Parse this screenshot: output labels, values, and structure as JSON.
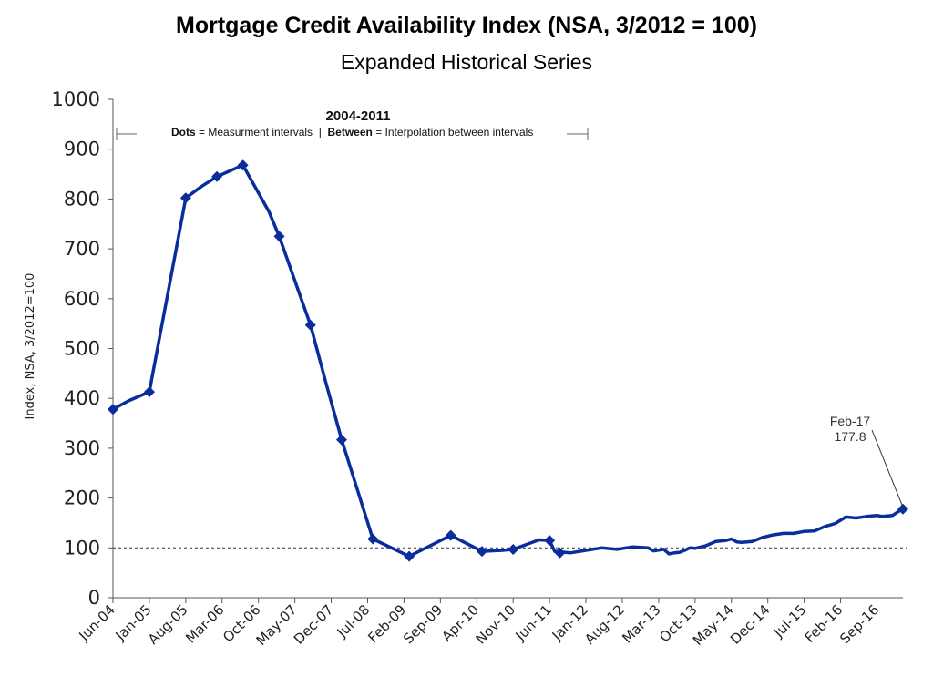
{
  "title": "Mortgage Credit Availability Index (NSA, 3/2012 = 100)",
  "subtitle": "Expanded Historical Series",
  "colors": {
    "series": "#0a2d9c",
    "axis": "#444444",
    "reference": "#333333"
  },
  "note": {
    "title": "2004-2011",
    "dots_bold": "Dots",
    "dots_text": " = Measurment intervals  |  ",
    "between_bold": "Between",
    "between_text": " = Interpolation between intervals"
  },
  "annotation": {
    "label": "Feb-17",
    "value": "177.8"
  },
  "chart_data": {
    "type": "line",
    "title": "Mortgage Credit Availability Index (NSA, 3/2012 = 100)",
    "subtitle": "Expanded Historical Series",
    "xlabel": "",
    "ylabel": "Index, NSA, 3/2012=100",
    "ylim": [
      0,
      1000
    ],
    "yticks": [
      0,
      100,
      200,
      300,
      400,
      500,
      600,
      700,
      800,
      900,
      1000
    ],
    "xlim": [
      "2004-06",
      "2017-02"
    ],
    "xticks": [
      "Jun-04",
      "Jan-05",
      "Aug-05",
      "Mar-06",
      "Oct-06",
      "May-07",
      "Dec-07",
      "Jul-08",
      "Feb-09",
      "Sep-09",
      "Apr-10",
      "Nov-10",
      "Jun-11",
      "Jan-12",
      "Aug-12",
      "Mar-13",
      "Oct-13",
      "May-14",
      "Dec-14",
      "Jul-15",
      "Feb-16",
      "Sep-16"
    ],
    "reference_line": 100,
    "grid": false,
    "series": [
      {
        "points": [
          [
            "2004-06",
            378
          ],
          [
            "2004-09",
            395
          ],
          [
            "2005-01",
            413
          ],
          [
            "2005-08",
            802
          ],
          [
            "2005-11",
            825
          ],
          [
            "2006-02",
            845
          ],
          [
            "2006-07",
            868
          ],
          [
            "2006-12",
            775
          ],
          [
            "2007-02",
            725
          ],
          [
            "2007-08",
            547
          ],
          [
            "2007-11",
            430
          ],
          [
            "2008-02",
            317
          ],
          [
            "2008-08",
            118
          ],
          [
            "2009-03",
            83
          ],
          [
            "2009-11",
            125
          ],
          [
            "2010-05",
            93
          ],
          [
            "2010-09",
            95
          ],
          [
            "2010-11",
            97
          ],
          [
            "2011-04",
            116
          ],
          [
            "2011-06",
            115
          ],
          [
            "2011-07",
            93
          ],
          [
            "2011-10",
            90
          ],
          [
            "2012-01",
            95
          ],
          [
            "2012-04",
            100
          ],
          [
            "2012-07",
            97
          ],
          [
            "2012-10",
            102
          ],
          [
            "2013-01",
            100
          ],
          [
            "2013-02",
            94
          ],
          [
            "2013-04",
            97
          ],
          [
            "2013-05",
            88
          ],
          [
            "2013-06",
            90
          ],
          [
            "2013-07",
            91
          ],
          [
            "2013-08",
            95
          ],
          [
            "2013-09",
            100
          ],
          [
            "2013-10",
            99
          ],
          [
            "2013-12",
            104
          ],
          [
            "2014-02",
            113
          ],
          [
            "2014-04",
            115
          ],
          [
            "2014-05",
            118
          ],
          [
            "2014-06",
            112
          ],
          [
            "2014-07",
            111
          ],
          [
            "2014-09",
            113
          ],
          [
            "2014-11",
            121
          ],
          [
            "2015-01",
            126
          ],
          [
            "2015-03",
            129
          ],
          [
            "2015-05",
            129
          ],
          [
            "2015-07",
            133
          ],
          [
            "2015-09",
            134
          ],
          [
            "2015-11",
            143
          ],
          [
            "2016-01",
            149
          ],
          [
            "2016-03",
            162
          ],
          [
            "2016-05",
            160
          ],
          [
            "2016-07",
            163
          ],
          [
            "2016-09",
            165
          ],
          [
            "2016-10",
            163
          ],
          [
            "2016-12",
            165
          ],
          [
            "2017-01",
            172
          ],
          [
            "2017-02",
            177.8
          ]
        ],
        "markers": [
          [
            "2004-06",
            378
          ],
          [
            "2005-01",
            413
          ],
          [
            "2005-08",
            802
          ],
          [
            "2006-02",
            845
          ],
          [
            "2006-07",
            868
          ],
          [
            "2007-02",
            725
          ],
          [
            "2007-08",
            547
          ],
          [
            "2008-02",
            317
          ],
          [
            "2008-08",
            118
          ],
          [
            "2009-03",
            83
          ],
          [
            "2009-11",
            125
          ],
          [
            "2010-05",
            93
          ],
          [
            "2010-11",
            97
          ],
          [
            "2011-06",
            115
          ],
          [
            "2011-08",
            90
          ],
          [
            "2017-02",
            177.8
          ]
        ]
      }
    ]
  }
}
